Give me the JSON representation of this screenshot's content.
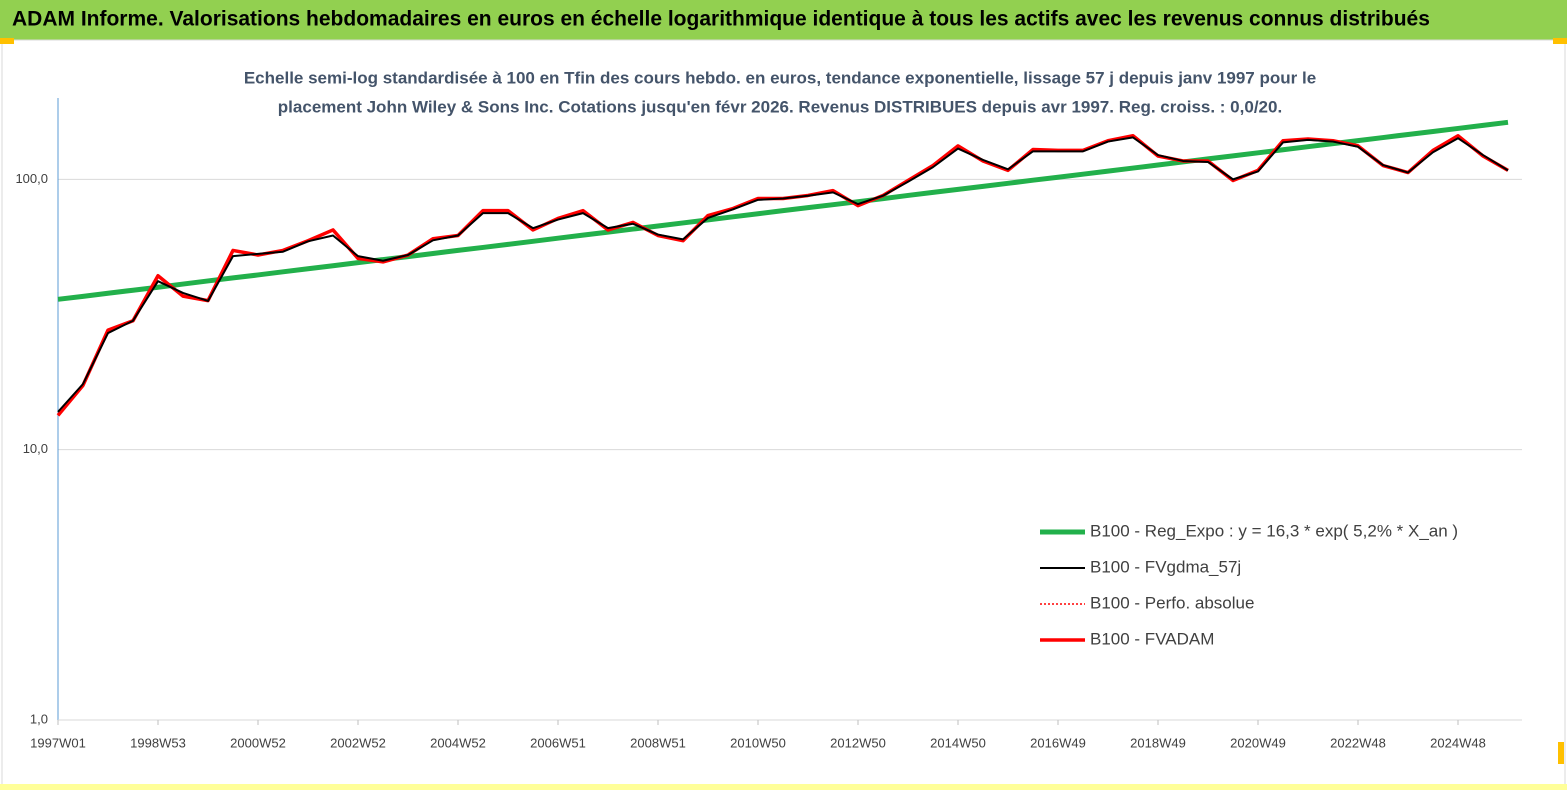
{
  "chart_data": {
    "type": "line",
    "header": "ADAM Informe. Valorisations hebdomadaires en euros en échelle logarithmique identique à tous les actifs avec les revenus connus distribués",
    "subtitle": [
      "Echelle semi-log standardisée à 100 en Tfin des cours hebdo. en euros, tendance exponentielle, lissage 57 j depuis janv 1997 pour le",
      "placement John Wiley & Sons Inc. Cotations jusqu'en févr 2026. Revenus DISTRIBUES depuis avr 1997. Reg. croiss. : 0,0/20."
    ],
    "categories": [
      "1997W01",
      null,
      null,
      null,
      "1998W53",
      null,
      null,
      null,
      "2000W52",
      null,
      null,
      null,
      "2002W52",
      null,
      null,
      null,
      "2004W52",
      null,
      null,
      null,
      "2006W51",
      null,
      null,
      null,
      "2008W51",
      null,
      null,
      null,
      "2010W50",
      null,
      null,
      null,
      "2012W50",
      null,
      null,
      null,
      "2014W50",
      null,
      null,
      null,
      "2016W49",
      null,
      null,
      null,
      "2018W49",
      null,
      null,
      null,
      "2020W49",
      null,
      null,
      null,
      "2022W48",
      null,
      null,
      null,
      "2024W48",
      null,
      null
    ],
    "log_scale": true,
    "ylim": [
      1,
      200
    ],
    "yticks": [
      {
        "value": 1,
        "label": "1,0"
      },
      {
        "value": 10,
        "label": "10,0"
      },
      {
        "value": 100,
        "label": "100,0"
      }
    ],
    "grid": true,
    "legend": "lower right",
    "series": [
      {
        "name": "B100 - Reg_Expo : y = 16,3 *  exp( 5,2% *  X_an )",
        "color": "#22b04b",
        "line_width": 5,
        "dashed": false,
        "values": [
          36.0,
          36.9,
          37.9,
          38.9,
          39.9,
          41.0,
          42.1,
          43.2,
          44.3,
          45.5,
          46.7,
          47.9,
          49.2,
          50.5,
          51.8,
          53.2,
          54.6,
          56.0,
          57.5,
          59.0,
          60.6,
          62.2,
          63.8,
          65.5,
          67.2,
          69.0,
          70.8,
          72.7,
          74.6,
          76.6,
          78.6,
          80.6,
          82.7,
          84.9,
          87.2,
          89.5,
          91.8,
          94.2,
          96.7,
          99.3,
          101.8,
          104.5,
          107.3,
          110.1,
          113.0,
          116.0,
          119.1,
          122.2,
          125.4,
          128.7,
          132.1,
          135.6,
          139.1,
          142.8,
          146.6,
          150.4,
          154.3,
          158.4,
          162.6
        ]
      },
      {
        "name": "B100 - FVgdma_57j",
        "color": "#000000",
        "line_width": 2,
        "dashed": false,
        "values": [
          13.8,
          17.5,
          27,
          30,
          42,
          38,
          35.5,
          52,
          53,
          54,
          59,
          62,
          52,
          50,
          52.5,
          59.5,
          62,
          75,
          75,
          66,
          71,
          75,
          66,
          68.5,
          62.5,
          60,
          72,
          77.5,
          84,
          85,
          87,
          89.5,
          81,
          87,
          98,
          111,
          130,
          118,
          109,
          127,
          127,
          127,
          138,
          143,
          123,
          117,
          116,
          100,
          107,
          137,
          140,
          138,
          132,
          113,
          106,
          126,
          142,
          123,
          108
        ]
      },
      {
        "name": "B100 - Perfo. absolue",
        "color": "#ff0000",
        "line_width": 1.5,
        "dashed": true,
        "values": [
          13.4,
          17.3,
          27.7,
          30,
          44,
          37,
          35.6,
          54.6,
          52.5,
          54.6,
          59.3,
          65,
          51,
          49.5,
          52.5,
          60.3,
          62,
          76.6,
          76.6,
          65,
          71.7,
          76.6,
          65,
          69.3,
          62,
          59.3,
          73.5,
          78,
          85,
          85,
          87.2,
          90.9,
          80,
          87.2,
          99,
          112.5,
          133,
          117,
          108,
          129,
          128,
          128,
          139,
          145,
          122,
          117,
          117,
          99,
          108,
          139,
          141,
          139,
          133,
          112.5,
          106,
          128,
          145,
          122,
          108
        ]
      },
      {
        "name": "B100 - FVADAM",
        "color": "#ff0000",
        "line_width": 3.5,
        "dashed": false,
        "values": [
          13.4,
          17.3,
          27.7,
          30,
          44,
          37,
          35.6,
          54.6,
          52.5,
          54.6,
          59.3,
          65,
          51,
          49.5,
          52.5,
          60.3,
          62,
          76.6,
          76.6,
          65,
          71.7,
          76.6,
          65,
          69.3,
          62,
          59.3,
          73.5,
          78,
          85,
          85,
          87.2,
          90.9,
          80,
          87.2,
          99,
          112.5,
          133,
          117,
          108,
          129,
          128,
          128,
          139,
          145,
          122,
          117,
          117,
          99,
          108,
          139,
          141,
          139,
          133,
          112.5,
          106,
          128,
          145,
          122,
          108
        ]
      }
    ]
  }
}
